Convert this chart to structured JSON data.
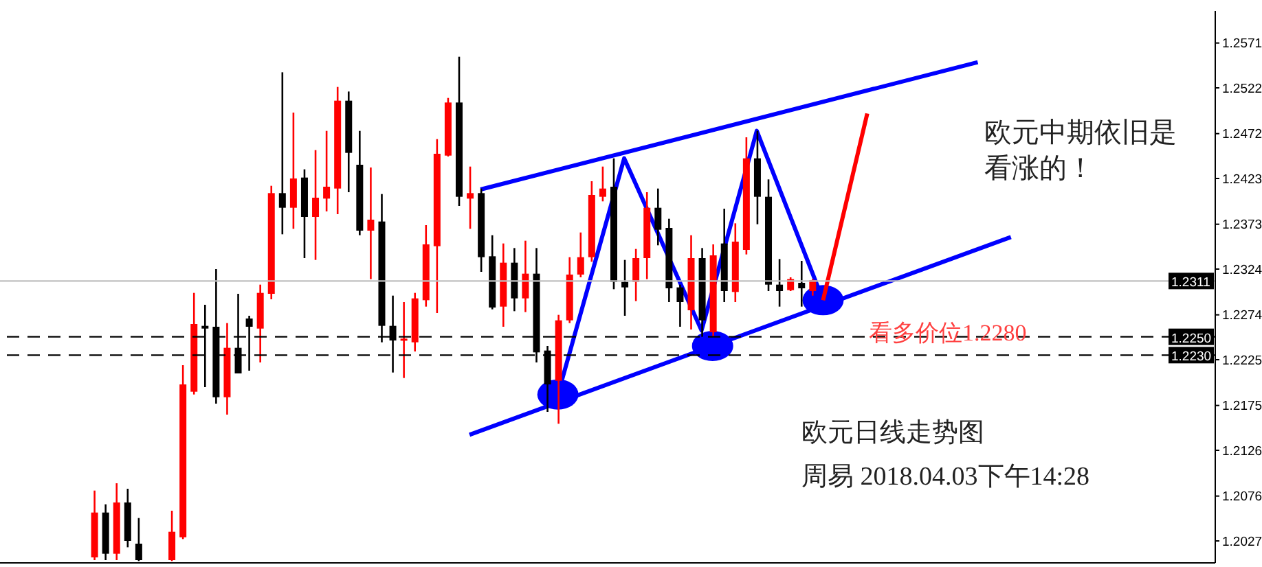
{
  "chart_data": {
    "type": "candlestick",
    "categories": [
      null,
      null,
      null,
      null,
      null,
      null,
      null,
      null,
      null,
      null,
      null,
      null,
      null,
      null,
      null,
      null,
      null,
      null,
      null,
      null,
      null,
      null,
      null,
      null,
      null,
      null,
      null,
      null,
      null,
      null,
      null,
      null,
      null,
      null,
      null,
      null,
      null,
      null,
      null,
      null,
      null,
      null,
      null,
      null,
      null,
      null,
      null,
      null,
      null,
      null,
      null,
      null,
      null,
      null,
      null,
      null,
      null,
      null,
      null,
      null,
      null,
      null,
      null,
      null,
      null,
      null,
      null,
      null,
      null,
      null,
      null,
      null,
      null,
      null,
      null,
      null,
      null,
      null,
      null,
      null,
      null,
      null,
      null,
      null,
      null,
      null,
      null,
      null,
      null,
      null,
      null,
      null,
      null,
      null,
      null,
      null,
      null,
      null,
      null,
      null,
      null,
      null,
      null,
      null,
      null,
      null,
      null,
      null,
      null,
      null
    ],
    "ohlc": [
      null,
      null,
      null,
      null,
      null,
      null,
      null,
      null,
      [
        1.2009,
        1.2082,
        1.2006,
        1.2058
      ],
      [
        1.2058,
        1.2067,
        1.2006,
        1.2013
      ],
      [
        1.2013,
        1.209,
        1.2006,
        1.2069
      ],
      [
        1.2069,
        1.2084,
        1.202,
        1.2027
      ],
      [
        1.2024,
        1.2052,
        1.2005,
        1.2006
      ],
      null,
      null,
      [
        1.2006,
        1.206,
        1.2005,
        1.2037
      ],
      [
        1.2031,
        1.2219,
        1.2029,
        1.2198
      ],
      [
        1.219,
        1.2298,
        1.2187,
        1.2264
      ],
      [
        1.2262,
        1.2285,
        1.2195,
        1.2259
      ],
      [
        1.2261,
        1.2324,
        1.2177,
        1.2184
      ],
      [
        1.2184,
        1.2265,
        1.2165,
        1.2238
      ],
      [
        1.2238,
        1.2297,
        1.221,
        1.221
      ],
      [
        1.227,
        1.2273,
        1.2213,
        1.2261
      ],
      [
        1.2259,
        1.2307,
        1.2222,
        1.2298
      ],
      [
        1.2297,
        1.2415,
        1.2291,
        1.2407
      ],
      [
        1.2407,
        1.2539,
        1.2362,
        1.2391
      ],
      [
        1.2391,
        1.2495,
        1.2368,
        1.2423
      ],
      [
        1.2424,
        1.2433,
        1.2336,
        1.2381
      ],
      [
        1.2381,
        1.2454,
        1.2334,
        1.2402
      ],
      [
        1.2401,
        1.2475,
        1.2387,
        1.2414
      ],
      [
        1.2412,
        1.2523,
        1.2384,
        1.2508
      ],
      [
        1.2508,
        1.2518,
        1.2408,
        1.2451
      ],
      [
        1.2438,
        1.2475,
        1.2361,
        1.2366
      ],
      [
        1.2366,
        1.2435,
        1.2313,
        1.2378
      ],
      [
        1.2376,
        1.2406,
        1.2244,
        1.2262
      ],
      [
        1.2262,
        1.2295,
        1.2211,
        1.2246
      ],
      [
        1.2246,
        1.2288,
        1.2205,
        1.2248
      ],
      [
        1.2244,
        1.2298,
        1.2234,
        1.2292
      ],
      [
        1.229,
        1.2372,
        1.2283,
        1.2351
      ],
      [
        1.2349,
        1.2466,
        1.2276,
        1.245
      ],
      [
        1.2448,
        1.2511,
        1.2447,
        1.2506
      ],
      [
        1.2506,
        1.2556,
        1.2393,
        1.2403
      ],
      [
        1.2401,
        1.2436,
        1.2368,
        1.2407
      ],
      [
        1.2407,
        1.2412,
        1.2321,
        1.2337
      ],
      [
        1.2338,
        1.2361,
        1.228,
        1.2282
      ],
      [
        1.2283,
        1.2352,
        1.2261,
        1.2331
      ],
      [
        1.2331,
        1.2347,
        1.2278,
        1.2292
      ],
      [
        1.2292,
        1.2355,
        1.2277,
        1.2319
      ],
      [
        1.2319,
        1.2347,
        1.2222,
        1.2233
      ],
      [
        1.2235,
        1.224,
        1.2168,
        1.2198
      ],
      [
        1.2202,
        1.2274,
        1.2155,
        1.2268
      ],
      [
        1.2268,
        1.2337,
        1.2265,
        1.2318
      ],
      [
        1.2318,
        1.2364,
        1.2315,
        1.2337
      ],
      [
        1.2337,
        1.242,
        1.2332,
        1.2405
      ],
      [
        1.2403,
        1.2436,
        1.2398,
        1.2412
      ],
      [
        1.2414,
        1.2445,
        1.2302,
        1.231
      ],
      [
        1.231,
        1.2334,
        1.2273,
        1.2304
      ],
      [
        1.231,
        1.2346,
        1.2289,
        1.2336
      ],
      [
        1.2336,
        1.2408,
        1.2313,
        1.2391
      ],
      [
        1.2391,
        1.2412,
        1.235,
        1.2367
      ],
      [
        1.2369,
        1.2379,
        1.2288,
        1.2303
      ],
      [
        1.2304,
        1.2307,
        1.2261,
        1.2288
      ],
      [
        1.2279,
        1.2361,
        1.2258,
        1.2336
      ],
      [
        1.2336,
        1.2347,
        1.225,
        1.2268
      ],
      [
        1.2255,
        1.2351,
        1.225,
        1.2339
      ],
      [
        1.2352,
        1.239,
        1.2288,
        1.23
      ],
      [
        1.2299,
        1.2374,
        1.2288,
        1.2354
      ],
      [
        1.2345,
        1.2468,
        1.234,
        1.2445
      ],
      [
        1.2445,
        1.2475,
        1.2373,
        1.2403
      ],
      [
        1.2403,
        1.2422,
        1.23,
        1.2307
      ],
      [
        1.2307,
        1.2335,
        1.2283,
        1.23
      ],
      [
        1.2301,
        1.2315,
        1.23,
        1.2313
      ],
      [
        1.2309,
        1.2333,
        1.2283,
        1.2303
      ],
      [
        1.23,
        1.2313,
        1.2295,
        1.2312
      ],
      null,
      null,
      null,
      null,
      null,
      null,
      null,
      null,
      null,
      null,
      null,
      null,
      null,
      null,
      null,
      null,
      null,
      null,
      null,
      null,
      null,
      null,
      null,
      null,
      null,
      null,
      null,
      null,
      null,
      null,
      null,
      null,
      null,
      null,
      null,
      null
    ],
    "colors": [
      null,
      null,
      null,
      null,
      null,
      null,
      null,
      null,
      "#ff0000",
      "#000000",
      "#ff0000",
      "#000000",
      "#000000",
      null,
      null,
      "#ff0000",
      "#ff0000",
      "#ff0000",
      "#000000",
      "#000000",
      "#ff0000",
      "#000000",
      "#000000",
      "#ff0000",
      "#ff0000",
      "#000000",
      "#ff0000",
      "#000000",
      "#ff0000",
      "#ff0000",
      "#ff0000",
      "#000000",
      "#000000",
      "#ff0000",
      "#000000",
      "#000000",
      "#ff0000",
      "#ff0000",
      "#ff0000",
      "#ff0000",
      "#ff0000",
      "#000000",
      "#ff0000",
      "#000000",
      "#000000",
      "#ff0000",
      "#000000",
      "#ff0000",
      "#000000",
      "#000000",
      "#ff0000",
      "#ff0000",
      "#ff0000",
      "#ff0000",
      "#ff0000",
      "#000000",
      "#000000",
      "#ff0000",
      "#ff0000",
      "#000000",
      "#000000",
      "#000000",
      "#ff0000",
      "#000000",
      "#ff0000",
      "#000000",
      "#ff0000",
      "#ff0000",
      "#000000",
      "#000000",
      "#000000",
      "#ff0000",
      "#000000",
      "#ff0000",
      null,
      null,
      null,
      null,
      null,
      null,
      null,
      null,
      null,
      null,
      null,
      null,
      null,
      null,
      null,
      null,
      null,
      null,
      null,
      null,
      null,
      null,
      null,
      null,
      null,
      null,
      null,
      null,
      null,
      null,
      null,
      null,
      null,
      null,
      null,
      null
    ],
    "series": [
      {
        "type": "line",
        "color": "#0000ff",
        "values": [
          null,
          null,
          null,
          null,
          null,
          null,
          null,
          null,
          null,
          null,
          null,
          null,
          null,
          null,
          null,
          null,
          null,
          null,
          null,
          null,
          null,
          null,
          null,
          null,
          null,
          null,
          null,
          null,
          null,
          null,
          null,
          null,
          null,
          null,
          null,
          null,
          null,
          null,
          null,
          null,
          null,
          null,
          null,
          1.2411,
          null,
          null,
          null,
          null,
          null,
          null,
          null,
          null,
          null,
          null,
          null,
          null,
          null,
          null,
          null,
          null,
          null,
          null,
          null,
          null,
          null,
          null,
          null,
          null,
          null,
          null,
          null,
          null,
          null,
          null,
          null,
          null,
          null,
          null,
          null,
          null,
          null,
          null,
          null,
          null,
          null,
          null,
          null,
          null,
          1.255,
          null,
          null,
          null,
          null,
          null,
          null,
          null,
          null,
          null,
          null,
          null,
          null,
          null,
          null,
          null,
          null,
          null,
          null,
          null,
          null,
          null
        ]
      },
      {
        "type": "line",
        "color": "#0000ff",
        "values": [
          null,
          null,
          null,
          null,
          null,
          null,
          null,
          null,
          null,
          null,
          null,
          null,
          null,
          null,
          null,
          null,
          null,
          null,
          null,
          null,
          null,
          null,
          null,
          null,
          null,
          null,
          null,
          null,
          null,
          null,
          null,
          null,
          null,
          null,
          null,
          null,
          null,
          null,
          null,
          null,
          null,
          null,
          1.2143,
          null,
          null,
          null,
          null,
          null,
          null,
          null,
          null,
          null,
          null,
          null,
          null,
          null,
          null,
          null,
          null,
          null,
          null,
          null,
          null,
          null,
          null,
          null,
          null,
          null,
          null,
          null,
          null,
          null,
          null,
          null,
          null,
          null,
          null,
          null,
          null,
          null,
          null,
          null,
          null,
          null,
          null,
          null,
          null,
          null,
          null,
          null,
          null,
          1.2359,
          null,
          null,
          null,
          null,
          null,
          null,
          null,
          null,
          null,
          null,
          null,
          null,
          null,
          null,
          null,
          null,
          null,
          null
        ]
      },
      {
        "type": "line",
        "color": "#0000ff",
        "values": [
          null,
          null,
          null,
          null,
          null,
          null,
          null,
          null,
          null,
          null,
          null,
          null,
          null,
          null,
          null,
          null,
          null,
          null,
          null,
          null,
          null,
          null,
          null,
          null,
          null,
          null,
          null,
          null,
          null,
          null,
          null,
          null,
          null,
          null,
          null,
          null,
          null,
          null,
          null,
          null,
          null,
          null,
          null,
          null,
          null,
          null,
          null,
          null,
          null,
          null,
          1.2187,
          null,
          null,
          null,
          null,
          null,
          1.2445,
          null,
          null,
          null,
          null,
          null,
          null,
          1.2257,
          null,
          null,
          null,
          null,
          1.2475,
          null,
          null,
          null,
          null,
          null,
          1.229,
          null,
          null,
          null,
          null,
          null,
          null,
          null,
          null,
          null,
          null,
          null,
          null,
          null,
          null,
          null,
          null,
          null,
          null,
          null,
          null,
          null,
          null,
          null,
          null,
          null,
          null,
          null,
          null,
          null,
          null,
          null,
          null,
          null,
          null,
          null
        ]
      },
      {
        "type": "line",
        "color": "#ff0000",
        "values": [
          null,
          null,
          null,
          null,
          null,
          null,
          null,
          null,
          null,
          null,
          null,
          null,
          null,
          null,
          null,
          null,
          null,
          null,
          null,
          null,
          null,
          null,
          null,
          null,
          null,
          null,
          null,
          null,
          null,
          null,
          null,
          null,
          null,
          null,
          null,
          null,
          null,
          null,
          null,
          null,
          null,
          null,
          null,
          null,
          null,
          null,
          null,
          null,
          null,
          null,
          null,
          null,
          null,
          null,
          null,
          null,
          null,
          null,
          null,
          null,
          null,
          null,
          null,
          null,
          null,
          null,
          null,
          null,
          null,
          null,
          null,
          null,
          null,
          null,
          1.229,
          null,
          null,
          null,
          1.2494,
          null,
          null,
          null,
          null,
          null,
          null,
          null,
          null,
          null,
          null,
          null,
          null,
          null,
          null,
          null,
          null,
          null,
          null,
          null,
          null,
          null,
          null,
          null,
          null,
          null,
          null,
          null,
          null,
          null,
          null,
          null
        ]
      },
      {
        "type": "scatter",
        "marker": "circle",
        "color": "#0000ff",
        "values": [
          null,
          null,
          null,
          null,
          null,
          null,
          null,
          null,
          null,
          null,
          null,
          null,
          null,
          null,
          null,
          null,
          null,
          null,
          null,
          null,
          null,
          null,
          null,
          null,
          null,
          null,
          null,
          null,
          null,
          null,
          null,
          null,
          null,
          null,
          null,
          null,
          null,
          null,
          null,
          null,
          null,
          null,
          null,
          null,
          null,
          null,
          null,
          null,
          null,
          null,
          1.2187,
          null,
          null,
          null,
          null,
          null,
          null,
          null,
          null,
          null,
          null,
          null,
          null,
          null,
          1.224,
          null,
          null,
          null,
          null,
          null,
          null,
          null,
          null,
          null,
          1.229,
          null,
          null,
          null,
          null,
          null,
          null,
          null,
          null,
          null,
          null,
          null,
          null,
          null,
          null,
          null,
          null,
          null,
          null,
          null,
          null,
          null,
          null,
          null,
          null,
          null,
          null,
          null,
          null,
          null,
          null,
          null,
          null,
          null,
          null,
          null
        ]
      }
    ],
    "ylim": [
      1.2003,
      1.2606
    ],
    "yticks": [
      1.2027,
      1.2076,
      1.2126,
      1.2175,
      1.2225,
      1.2274,
      1.2324,
      1.2373,
      1.2423,
      1.2472,
      1.2522,
      1.2571
    ],
    "tick_labels": "y",
    "ref_lines": [
      {
        "axis": "y",
        "value": 1.2311,
        "label": "1.2311",
        "color": "#c0c0c0",
        "line_style": "solid"
      },
      {
        "axis": "y",
        "value": 1.225,
        "label": "1.2250",
        "color": "#000000",
        "line_style": "dashed"
      },
      {
        "axis": "y",
        "value": 1.223,
        "label": "1.2230",
        "color": "#000000",
        "line_style": "dashed"
      }
    ],
    "annotations": [
      "欧元中期依旧是看涨的！",
      "看多价位1.2280",
      "欧元日线走势图",
      "周易 2018.04.03下午14:28"
    ]
  }
}
